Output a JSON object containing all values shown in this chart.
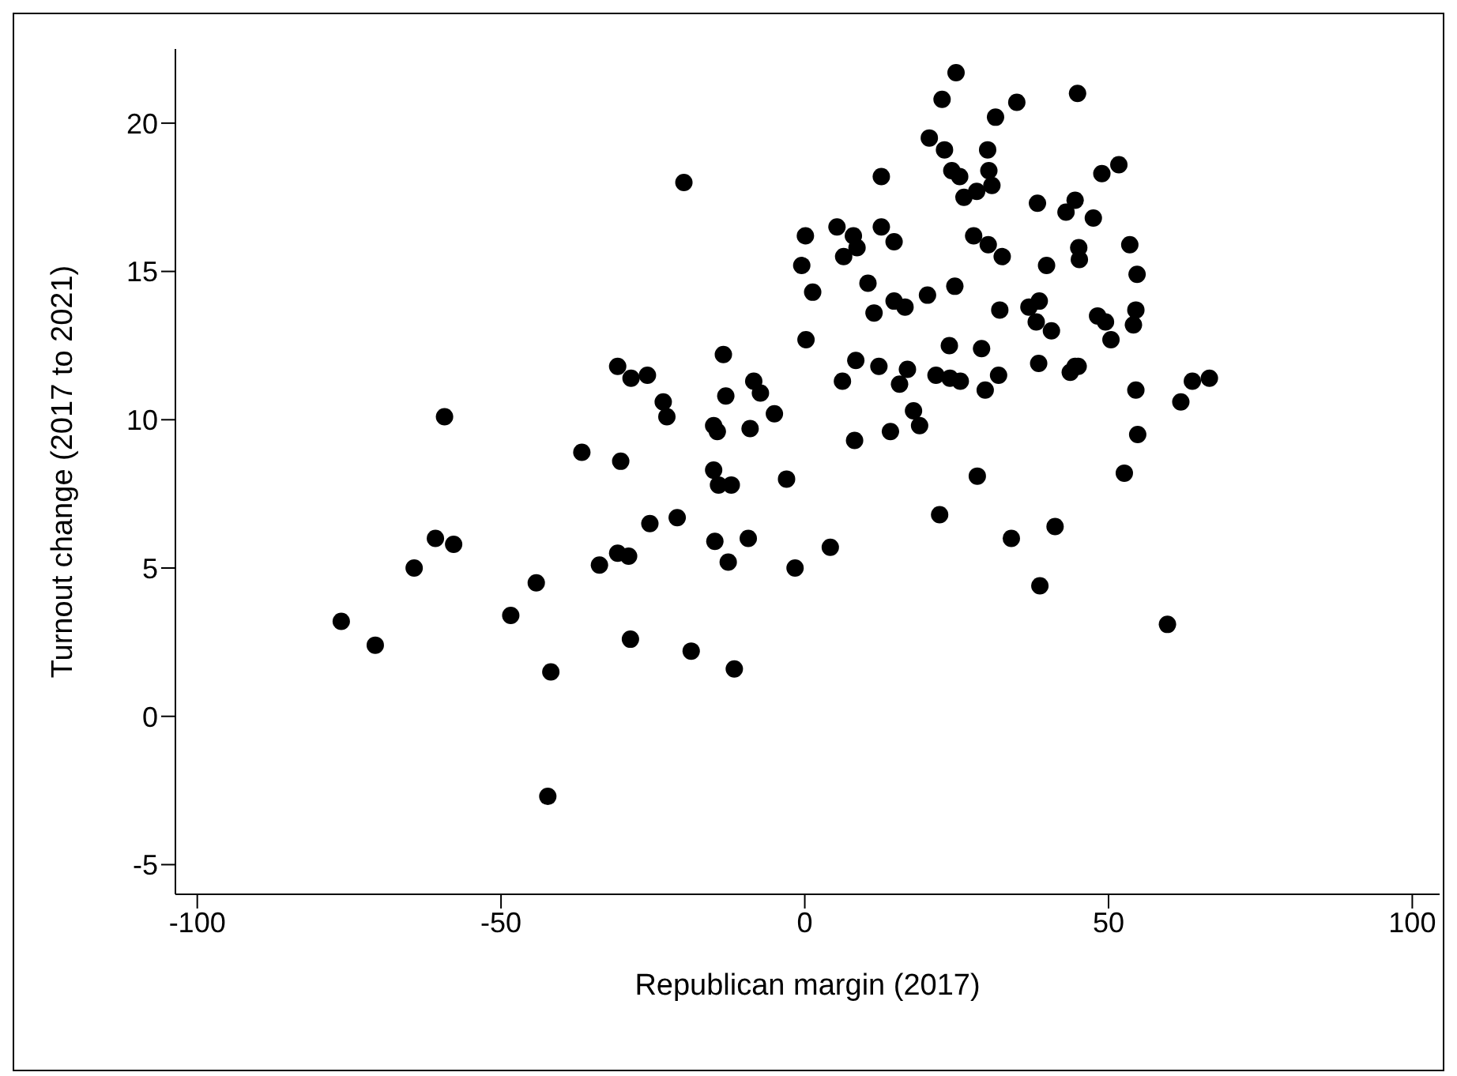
{
  "chart_data": {
    "type": "scatter",
    "xlabel": "Republican margin (2017)",
    "ylabel": "Turnout change (2017 to 2021)",
    "xlim": [
      -103.6,
      104.5
    ],
    "ylim": [
      -6,
      22.5
    ],
    "xticks": [
      -100,
      -50,
      0,
      50,
      100
    ],
    "yticks": [
      -5,
      0,
      5,
      10,
      15,
      20
    ],
    "grid": false,
    "legend": false,
    "marker": "circle",
    "series": [
      {
        "color": "#000000",
        "x": [
          -0.5,
          1.3,
          0.2,
          -13.4,
          -30.8,
          -28.6,
          -25.9,
          -8.4,
          -7.3,
          -13.0,
          -23.3,
          -22.7,
          -5.0,
          -15.0,
          -14.4,
          -9.0,
          -59.3,
          -36.7,
          -30.3,
          -15.0,
          -14.2,
          -12.1,
          -3.0,
          -25.5,
          -21.0,
          -14.8,
          -9.3,
          -12.6,
          -1.6,
          -60.8,
          -57.8,
          -64.3,
          -30.8,
          -29.0,
          -33.8,
          -44.2,
          -48.4,
          -76.3,
          -70.7,
          -28.7,
          -18.7,
          -11.6,
          -41.8,
          -42.3,
          -19.9,
          24.9,
          22.6,
          44.9,
          34.9,
          31.4,
          20.5,
          23.0,
          30.1,
          30.3,
          30.8,
          24.2,
          25.5,
          28.3,
          26.2,
          51.7,
          48.9,
          12.6,
          38.3,
          44.5,
          43.0,
          47.5,
          0.1,
          5.3,
          12.6,
          8.0,
          8.6,
          6.4,
          14.7,
          27.8,
          30.2,
          32.5,
          45.1,
          45.2,
          39.8,
          53.5,
          54.7,
          10.4,
          24.7,
          20.2,
          14.7,
          16.5,
          11.4,
          32.1,
          36.9,
          38.6,
          38.1,
          40.6,
          48.2,
          49.5,
          50.4,
          54.5,
          54.1,
          23.8,
          29.1,
          8.4,
          12.2,
          16.9,
          6.2,
          15.6,
          21.6,
          23.9,
          25.6,
          29.7,
          31.9,
          38.5,
          43.7,
          44.5,
          45.0,
          54.5,
          61.9,
          63.8,
          66.6,
          8.2,
          14.1,
          17.9,
          18.9,
          28.4,
          52.6,
          54.8,
          22.2,
          34.0,
          41.2,
          4.2,
          38.7,
          59.7
        ],
        "values": [
          15.2,
          14.3,
          12.7,
          12.2,
          11.8,
          11.4,
          11.5,
          11.3,
          10.9,
          10.8,
          10.6,
          10.1,
          10.2,
          9.8,
          9.6,
          9.7,
          10.1,
          8.9,
          8.6,
          8.3,
          7.8,
          7.8,
          8.0,
          6.5,
          6.7,
          5.9,
          6.0,
          5.2,
          5.0,
          6.0,
          5.8,
          5.0,
          5.5,
          5.4,
          5.1,
          4.5,
          3.4,
          3.2,
          2.4,
          2.6,
          2.2,
          1.6,
          1.5,
          -2.7,
          18.0,
          21.7,
          20.8,
          21.0,
          20.7,
          20.2,
          19.5,
          19.1,
          19.1,
          18.4,
          17.9,
          18.4,
          18.2,
          17.7,
          17.5,
          18.6,
          18.3,
          18.2,
          17.3,
          17.4,
          17.0,
          16.8,
          16.2,
          16.5,
          16.5,
          16.2,
          15.8,
          15.5,
          16.0,
          16.2,
          15.9,
          15.5,
          15.8,
          15.4,
          15.2,
          15.9,
          14.9,
          14.6,
          14.5,
          14.2,
          14.0,
          13.8,
          13.6,
          13.7,
          13.8,
          14.0,
          13.3,
          13.0,
          13.5,
          13.3,
          12.7,
          13.7,
          13.2,
          12.5,
          12.4,
          12.0,
          11.8,
          11.7,
          11.3,
          11.2,
          11.5,
          11.4,
          11.3,
          11.0,
          11.5,
          11.9,
          11.6,
          11.8,
          11.8,
          11.0,
          10.6,
          11.3,
          11.4,
          9.3,
          9.6,
          10.3,
          9.8,
          8.1,
          8.2,
          9.5,
          6.8,
          6.0,
          6.4,
          5.7,
          4.4,
          3.1
        ]
      }
    ]
  }
}
